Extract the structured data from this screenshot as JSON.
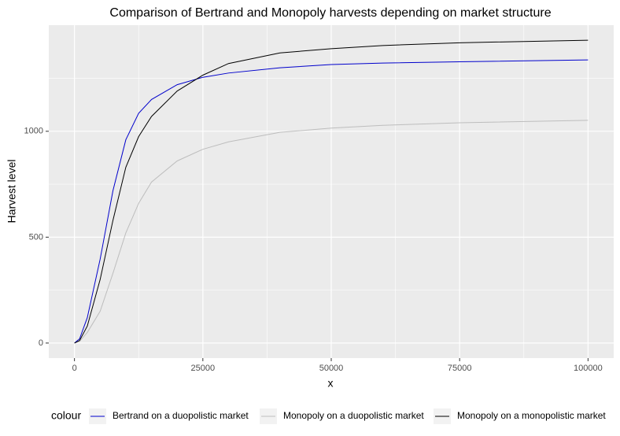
{
  "chart_data": {
    "type": "line",
    "title": "Comparison of Bertrand and Monopoly harvests depending on market structure",
    "x_label": "x",
    "y_label": "Harvest level",
    "legend_title": "colour",
    "legend_position": "bottom",
    "grid": true,
    "x": [
      0,
      1000,
      2500,
      5000,
      7500,
      10000,
      12500,
      15000,
      20000,
      25000,
      30000,
      40000,
      50000,
      60000,
      75000,
      100000
    ],
    "series": [
      {
        "name": "Bertrand on a duopolistic market",
        "color": "#0000cc",
        "values": [
          0,
          20,
          120,
          396,
          720,
          960,
          1085,
          1150,
          1220,
          1255,
          1275,
          1300,
          1315,
          1322,
          1328,
          1337
        ]
      },
      {
        "name": "Monopoly on a duopolistic market",
        "color": "#bdbdbd",
        "values": [
          0,
          8,
          50,
          150,
          330,
          520,
          660,
          760,
          860,
          915,
          950,
          995,
          1015,
          1028,
          1040,
          1052
        ]
      },
      {
        "name": "Monopoly on a monopolistic market",
        "color": "#000000",
        "values": [
          0,
          12,
          80,
          300,
          580,
          830,
          975,
          1070,
          1190,
          1265,
          1320,
          1370,
          1390,
          1405,
          1418,
          1430
        ]
      }
    ],
    "xlim": [
      -5000,
      105000
    ],
    "xticks": [
      0,
      25000,
      50000,
      75000,
      100000
    ],
    "xminor": [
      12500,
      37500,
      62500,
      87500
    ],
    "ylim": [
      -71,
      1501
    ],
    "yticks": [
      0,
      500,
      1000
    ],
    "yminor": [
      250,
      750,
      1250
    ]
  }
}
